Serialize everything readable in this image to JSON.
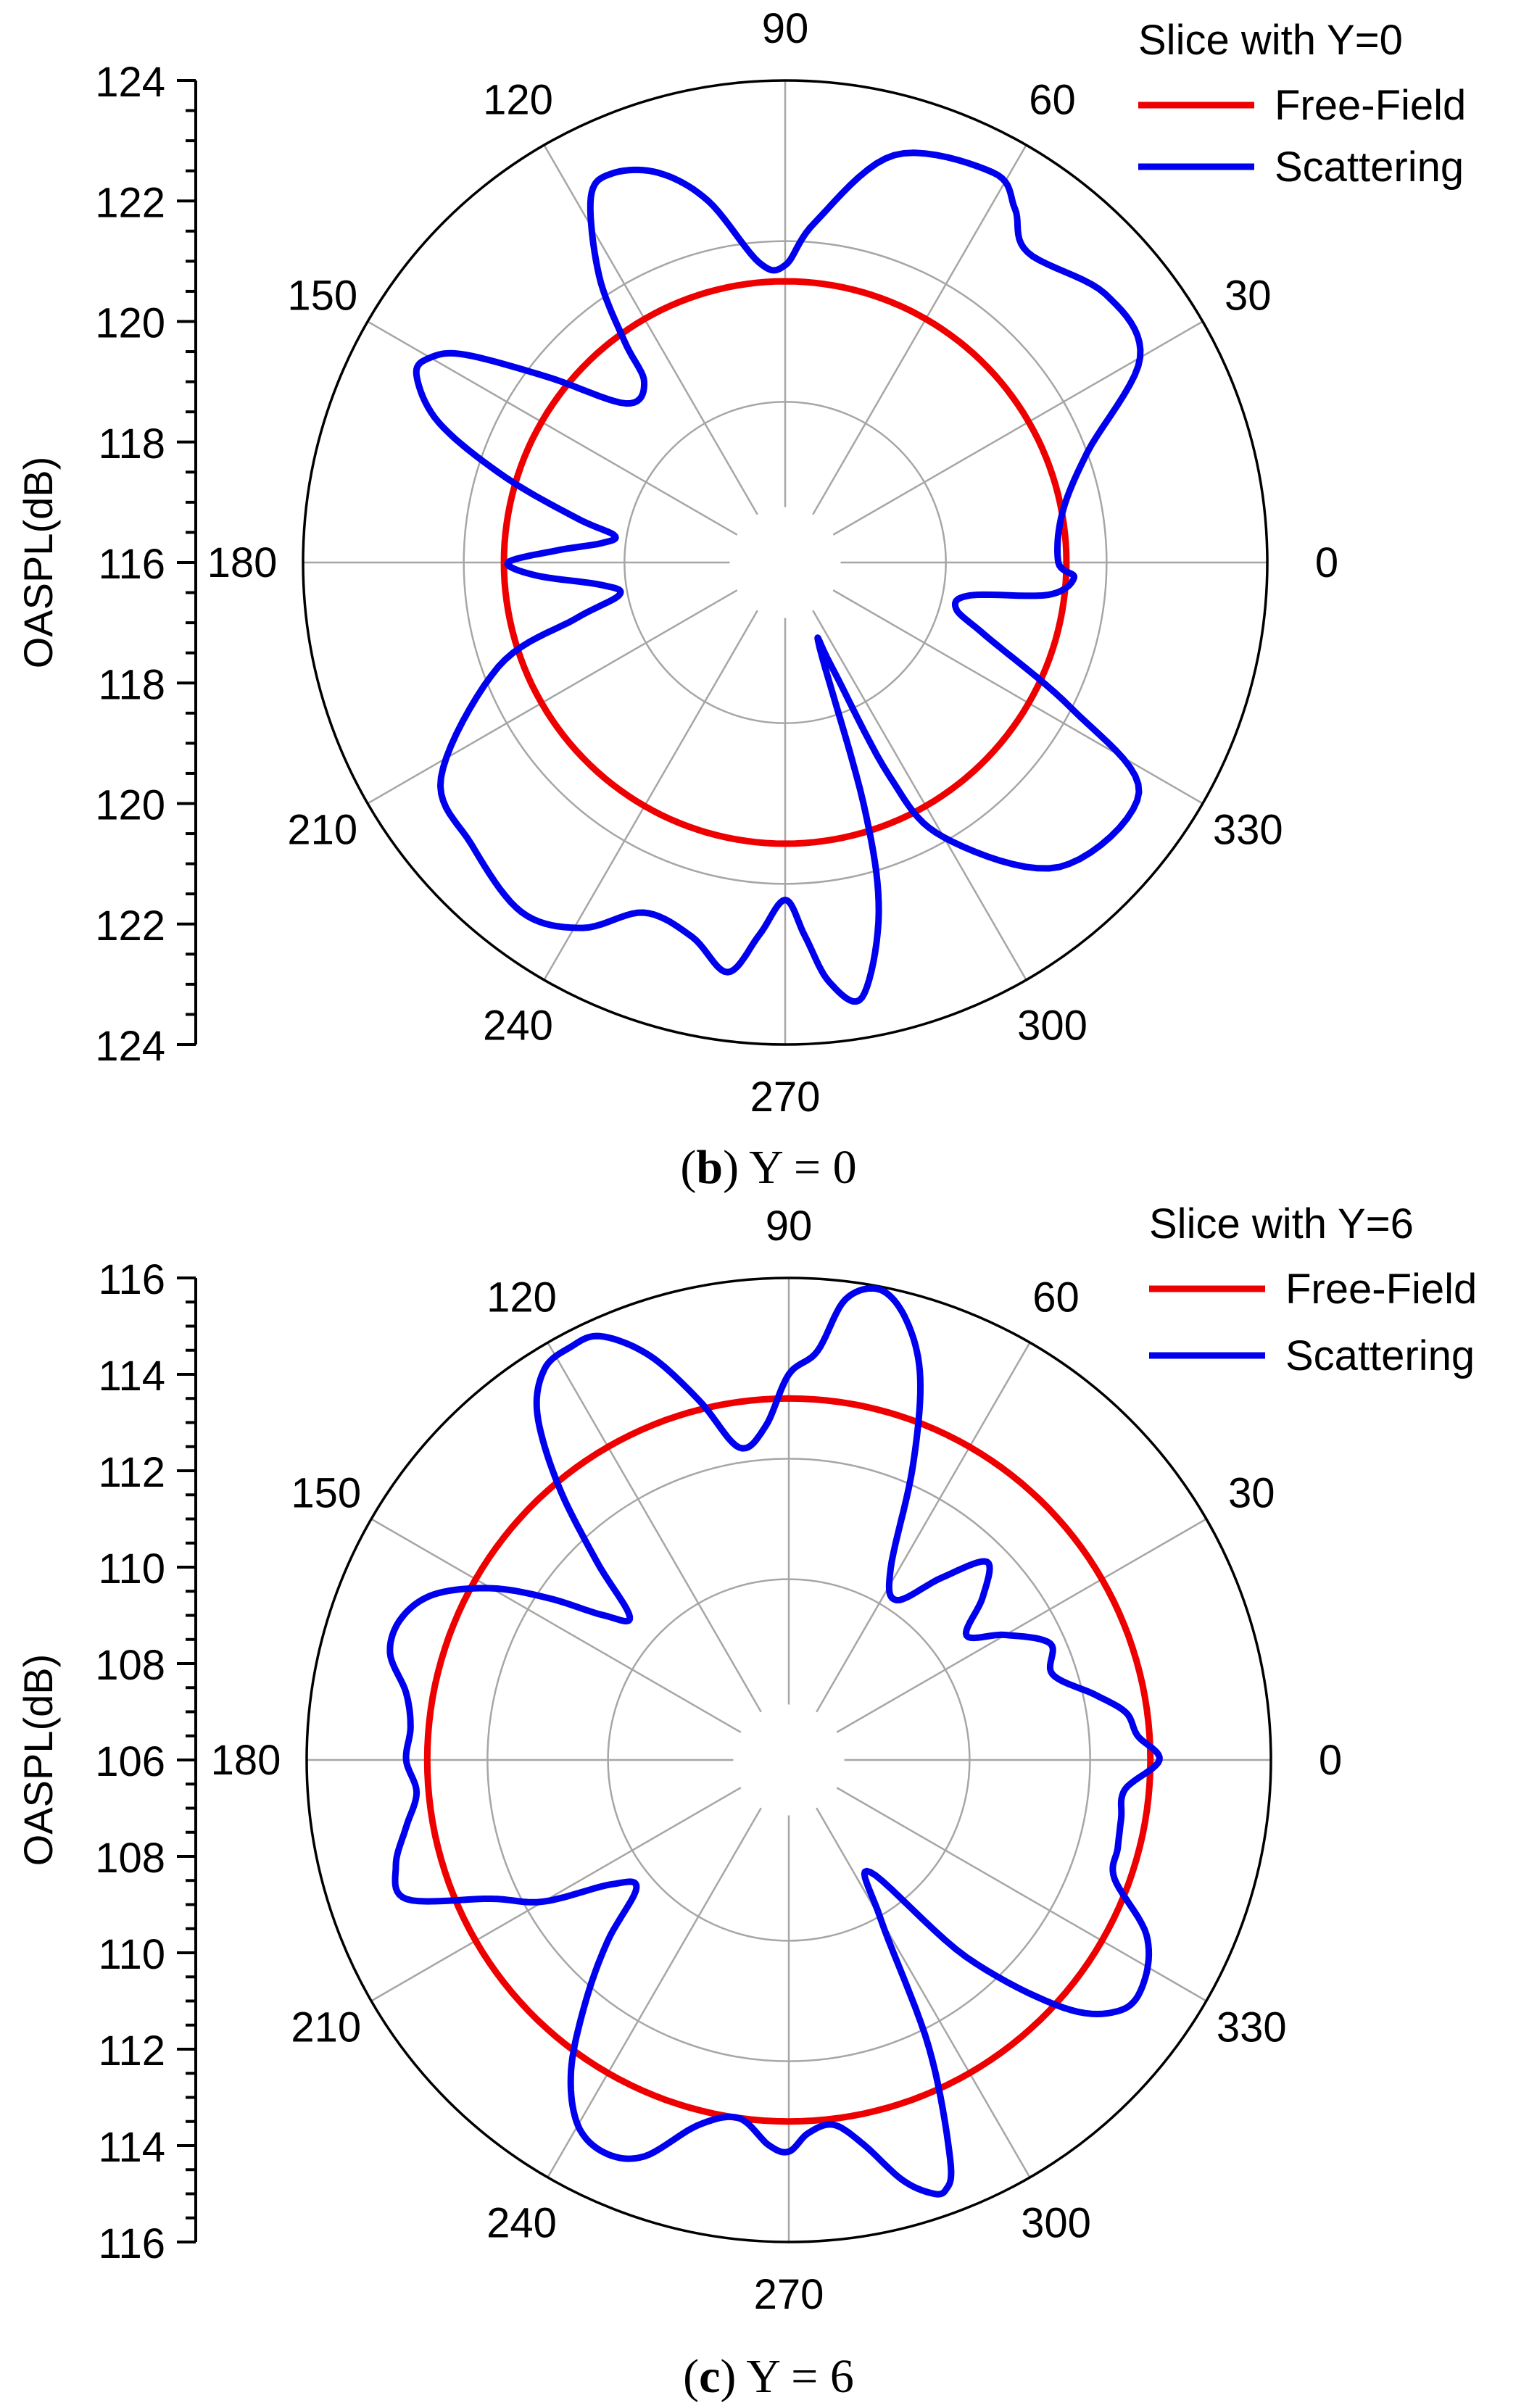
{
  "chart_data": [
    {
      "type": "polar_line",
      "caption_letter": "b",
      "caption_rest": " Y = 0",
      "legend_title": "Slice with Y=0",
      "ylabel": "OASPL(dB)",
      "r_range": [
        112,
        124
      ],
      "ring_values": [
        116,
        120,
        124
      ],
      "axis_ticks": [
        124,
        122,
        120,
        118,
        116,
        118,
        120,
        122,
        124
      ],
      "angle_ticks": [
        0,
        30,
        60,
        90,
        120,
        150,
        180,
        210,
        240,
        270,
        300,
        330
      ],
      "angle_unit": "degree",
      "grid": true,
      "legend_position": "top-right",
      "series": [
        {
          "name": "Free-Field",
          "color": "#ee0000",
          "theta": [
            0,
            360
          ],
          "r": [
            119,
            119
          ]
        },
        {
          "name": "Scattering",
          "color": "#0000ee",
          "theta": [
            0,
            10,
            20,
            30,
            40,
            52,
            57,
            62,
            75,
            85,
            90,
            95,
            102,
            108,
            114,
            118,
            123,
            126,
            128,
            135,
            142,
            147,
            150,
            153,
            158,
            163,
            168,
            171,
            174,
            177,
            180,
            183,
            187,
            191,
            195,
            200,
            212,
            222,
            233,
            241,
            248,
            256,
            262,
            266,
            270,
            273,
            276,
            280,
            285,
            288,
            292,
            294,
            296,
            300,
            312,
            327,
            333,
            340,
            345,
            350,
            353,
            357,
            360
          ],
          "r": [
            118.8,
            119,
            120,
            122.2,
            122.4,
            121.8,
            122.5,
            123,
            122.5,
            120.5,
            119.4,
            119.5,
            121.2,
            122.2,
            122.6,
            122.3,
            120.5,
            118.8,
            117.7,
            117.6,
            119.5,
            121.5,
            122.2,
            122.3,
            121.3,
            119.3,
            117.3,
            116.3,
            116.6,
            117.7,
            118.9,
            118.2,
            116.6,
            116.2,
            117.4,
            119.6,
            122.1,
            122.5,
            122.9,
            122.4,
            121.4,
            121.6,
            122.3,
            121.3,
            120.4,
            121.3,
            122.5,
            123,
            121,
            118.3,
            114.3,
            114.8,
            117.9,
            119.9,
            122.2,
            122.5,
            120,
            117.3,
            116.4,
            116.7,
            118.6,
            119.2,
            118.8
          ]
        }
      ]
    },
    {
      "type": "polar_line",
      "caption_letter": "c",
      "caption_rest": " Y = 6",
      "legend_title": "Slice with Y=6",
      "ylabel": "OASPL(dB)",
      "r_range": [
        100,
        116
      ],
      "ring_values": [
        106,
        110,
        112,
        116
      ],
      "axis_ticks": [
        116,
        114,
        112,
        110,
        108,
        106,
        108,
        110,
        112,
        114,
        116
      ],
      "angle_ticks": [
        0,
        30,
        60,
        90,
        120,
        150,
        180,
        210,
        240,
        270,
        300,
        330
      ],
      "angle_unit": "degree",
      "grid": true,
      "legend_position": "top-right",
      "series": [
        {
          "name": "Free-Field",
          "color": "#ee0000",
          "theta": [
            0,
            360
          ],
          "r": [
            112,
            112
          ]
        },
        {
          "name": "Scattering",
          "color": "#0000ee",
          "theta": [
            0,
            4,
            8,
            12,
            18,
            24,
            30,
            35,
            40,
            45,
            50,
            56,
            62,
            67,
            71,
            75,
            79,
            83,
            86,
            90,
            94,
            99,
            104,
            109,
            114,
            118,
            122,
            126,
            130,
            134,
            138,
            142,
            146,
            150,
            155,
            160,
            165,
            170,
            175,
            180,
            185,
            190,
            195,
            200,
            205,
            210,
            215,
            220,
            225,
            230,
            235,
            240,
            245,
            250,
            256,
            262,
            267,
            270,
            273,
            277,
            281,
            285,
            288,
            290,
            292,
            296,
            300,
            306,
            312,
            318,
            323,
            328,
            334,
            340,
            345,
            350,
            355,
            360
          ],
          "r": [
            112.3,
            111.6,
            111.3,
            110.4,
            109.2,
            109.5,
            108.3,
            107.2,
            108.4,
            109.3,
            107.9,
            106.4,
            107.2,
            110.5,
            113.4,
            115.1,
            115.9,
            115.4,
            113.6,
            112.8,
            111.1,
            110.5,
            112.3,
            114.2,
            115.4,
            115.5,
            115.3,
            114.2,
            111.9,
            109.2,
            107.1,
            107.8,
            109.6,
            111.4,
            113.0,
            113.7,
            113.7,
            112.9,
            112.6,
            112.7,
            112.4,
            112.9,
            113.5,
            113.5,
            110.9,
            109.4,
            107.2,
            106.6,
            108.5,
            110.5,
            112.6,
            114.0,
            114.4,
            114.0,
            112.5,
            112.0,
            112.8,
            113.0,
            112.4,
            112.2,
            113.0,
            114.4,
            115.1,
            115.2,
            114.3,
            110.6,
            106.1,
            104.6,
            108.8,
            112.3,
            113.8,
            113.9,
            113.2,
            111.5,
            111.3,
            111.2,
            111.2,
            112.3
          ]
        }
      ]
    }
  ]
}
